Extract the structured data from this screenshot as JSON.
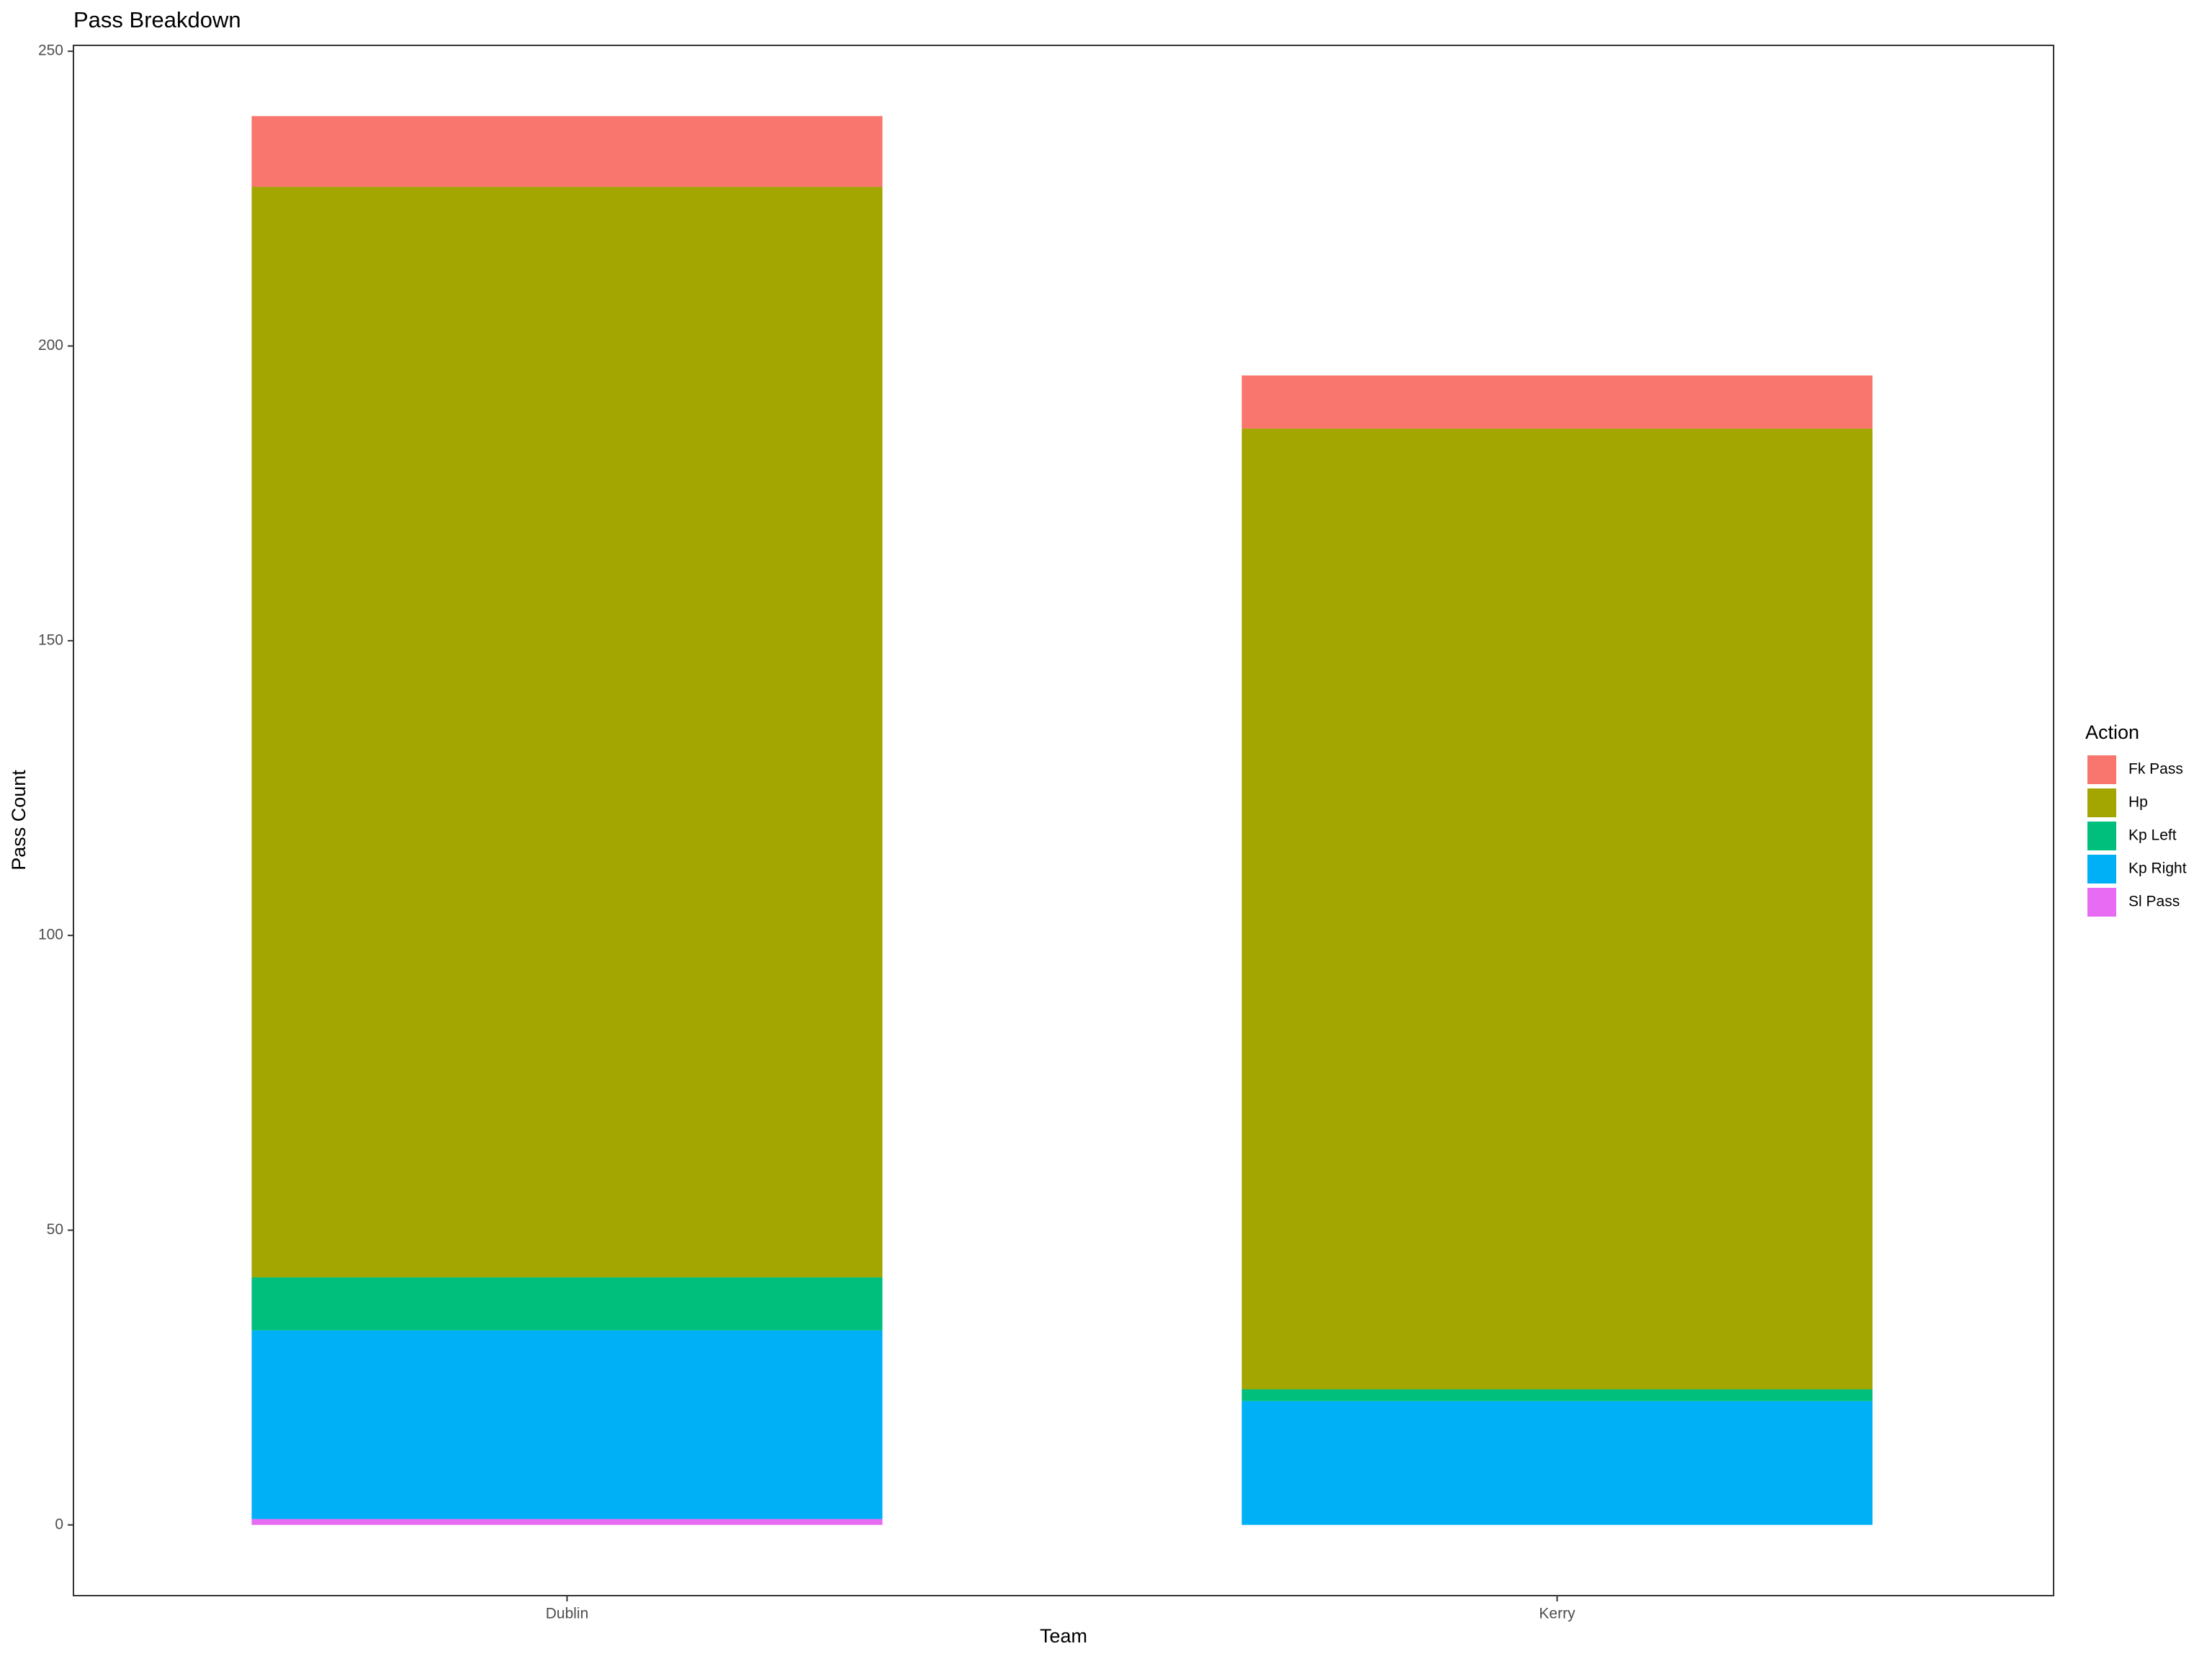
{
  "chart_data": {
    "type": "stacked_bar",
    "title": "Pass Breakdown",
    "x_label": "Team",
    "y_label": "Pass Count",
    "categories": [
      "Dublin",
      "Kerry"
    ],
    "series": [
      {
        "name": "Fk Pass",
        "color": "#f8766d",
        "values": [
          12,
          9
        ]
      },
      {
        "name": "Hp",
        "color": "#a3a500",
        "values": [
          185,
          163
        ]
      },
      {
        "name": "Kp Left",
        "color": "#00bf7d",
        "values": [
          9,
          2
        ]
      },
      {
        "name": "Kp Right",
        "color": "#00b0f6",
        "values": [
          32,
          21
        ]
      },
      {
        "name": "Sl Pass",
        "color": "#e76bf3",
        "values": [
          1,
          0
        ]
      }
    ],
    "legend_title": "Action",
    "legend_position": "right",
    "ylim": [
      -12,
      251
    ],
    "yticks": [
      0,
      50,
      100,
      150,
      200,
      250
    ],
    "grid": false
  }
}
